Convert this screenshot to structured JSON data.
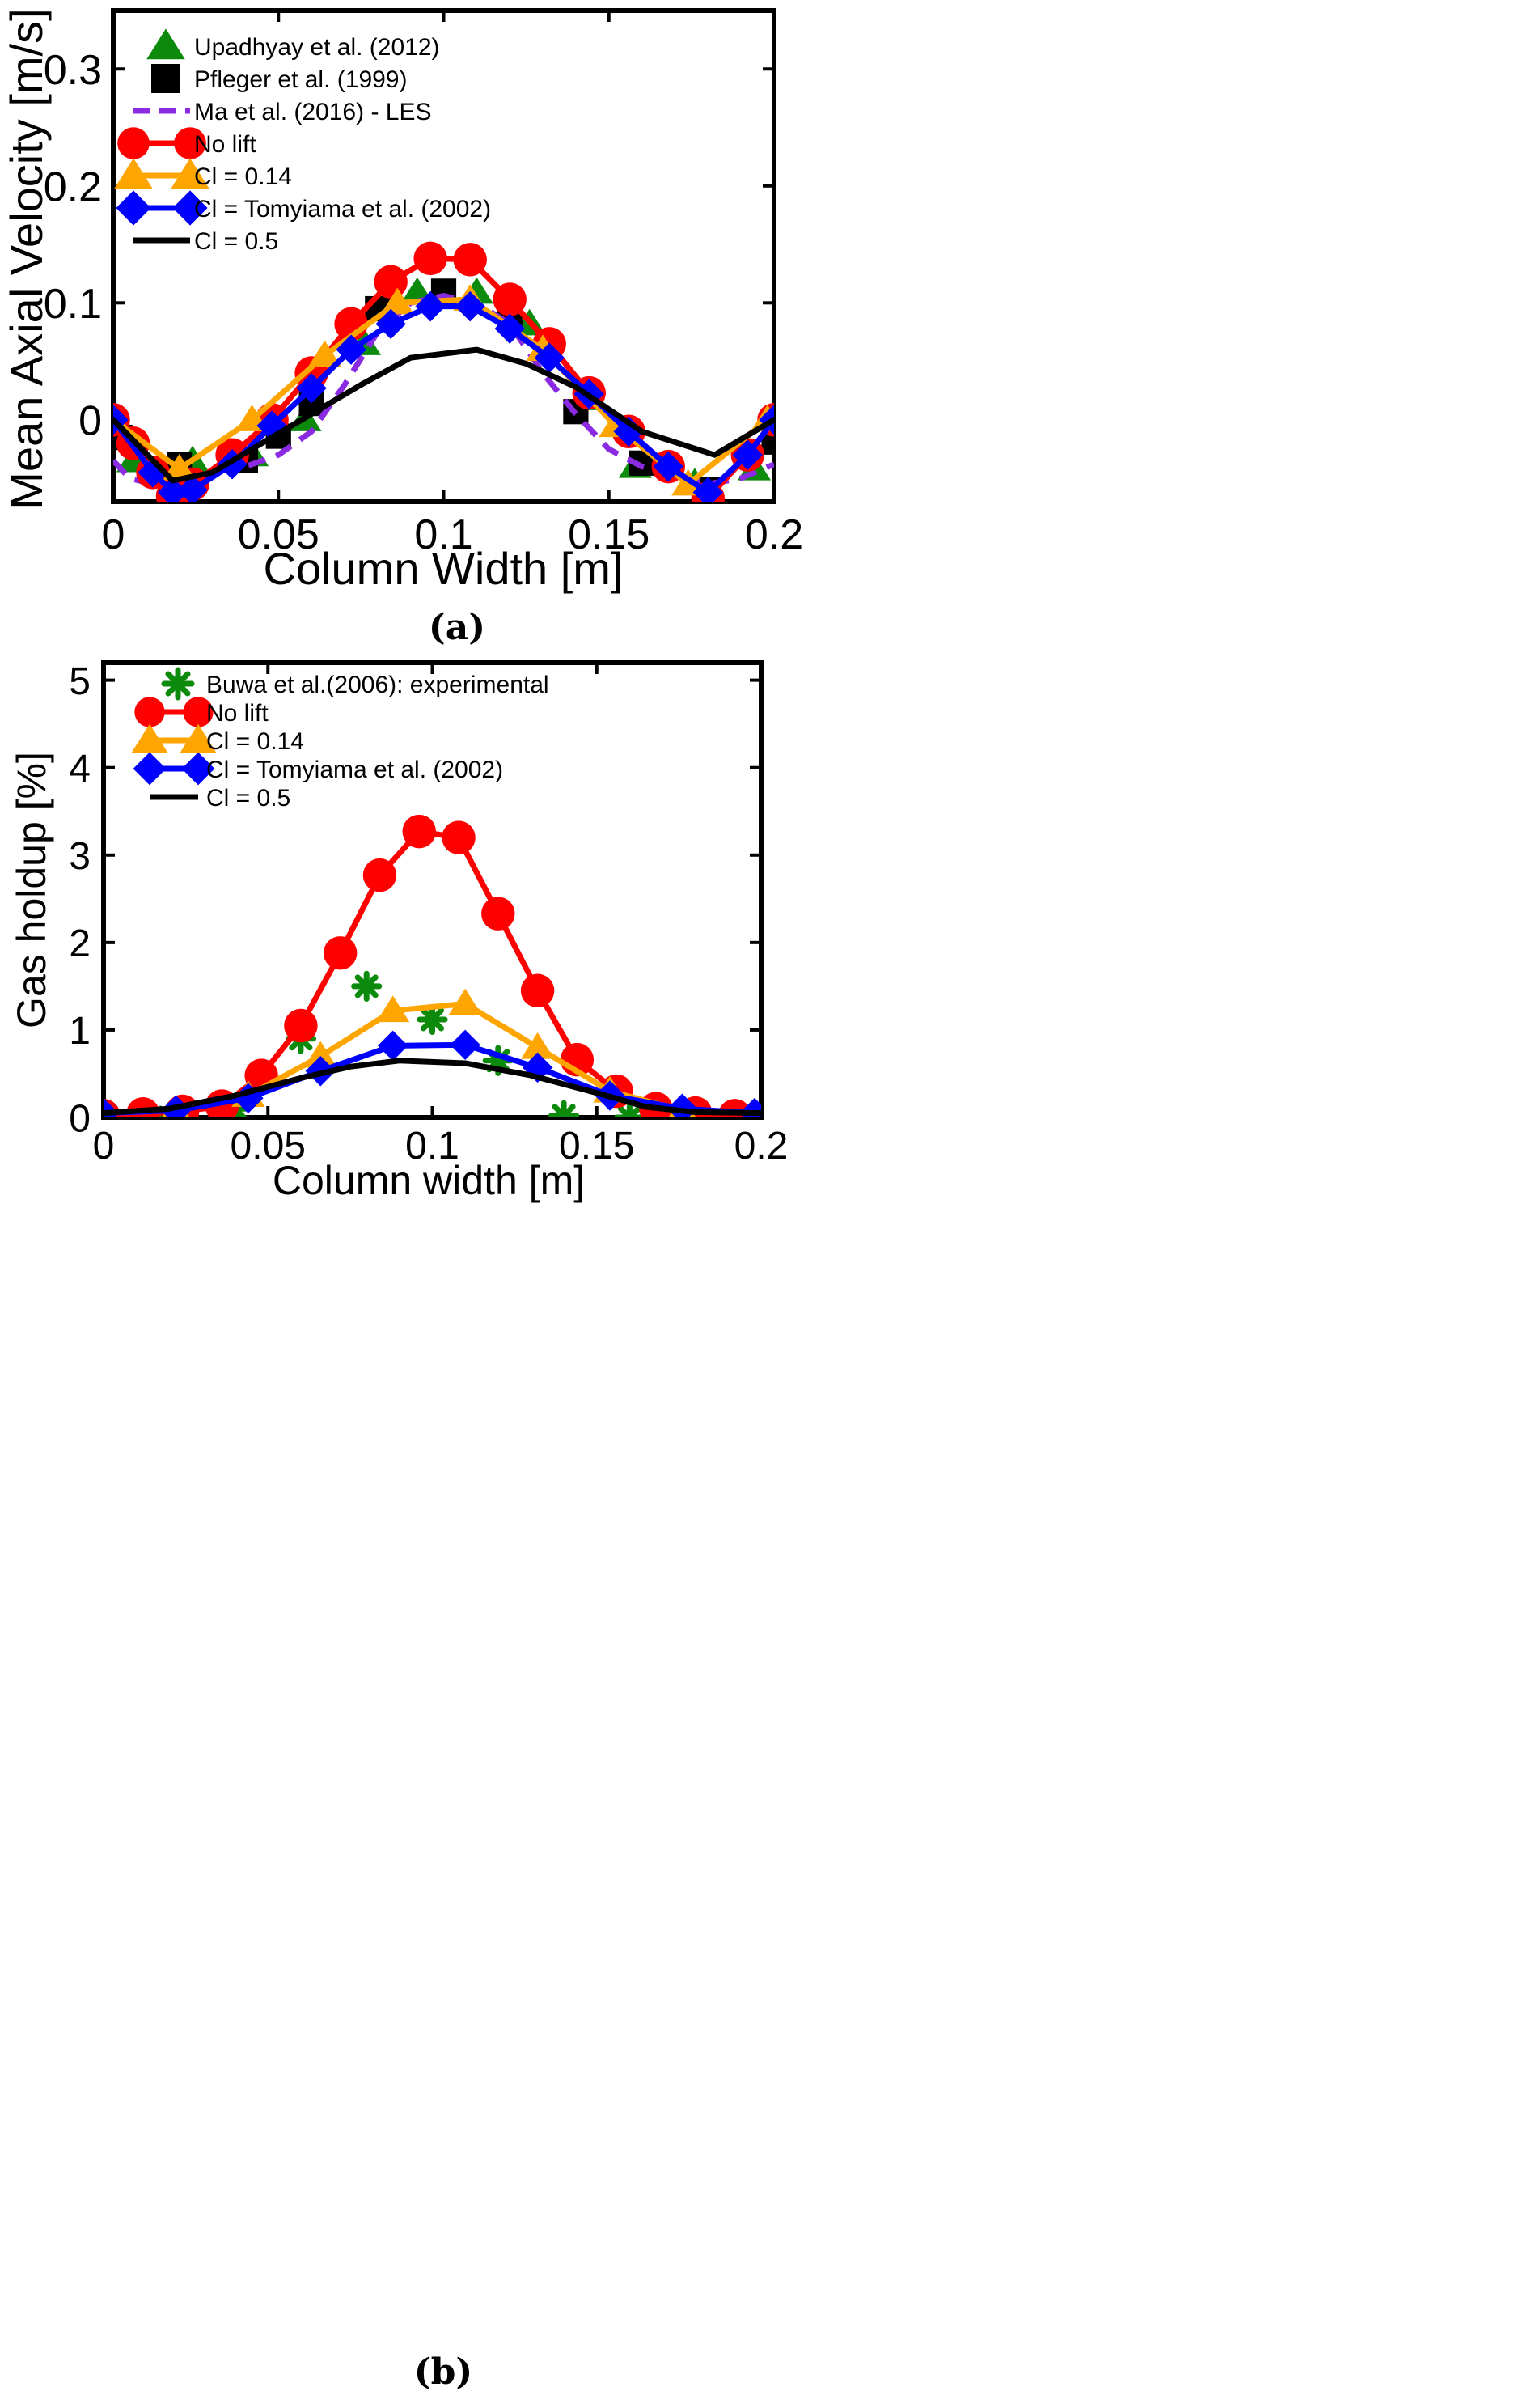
{
  "chart_data": [
    {
      "type": "line",
      "panel_label": "(a)",
      "xlabel": "Column Width [m]",
      "ylabel": "Mean Axial Velocity [m/s]",
      "xlim": [
        0,
        0.2
      ],
      "ylim": [
        -0.07,
        0.35
      ],
      "xticks": [
        0,
        0.05,
        0.1,
        0.15,
        0.2
      ],
      "xtick_labels": [
        "0",
        "0.05",
        "0.1",
        "0.15",
        "0.2"
      ],
      "yticks": [
        0,
        0.1,
        0.2,
        0.3
      ],
      "ytick_labels": [
        "0",
        "0.1",
        "0.2",
        "0.3"
      ],
      "legend_position": "top-left",
      "series": [
        {
          "name": "Upadhyay et al. (2012)",
          "style": "markers",
          "marker": "triangle",
          "color": "#0b8a0b",
          "x": [
            0,
            0.006,
            0.024,
            0.042,
            0.058,
            0.076,
            0.092,
            0.11,
            0.126,
            0.142,
            0.158,
            0.176,
            0.194
          ],
          "y": [
            0,
            -0.035,
            -0.035,
            -0.03,
            0,
            0.065,
            0.109,
            0.109,
            0.082,
            0.018,
            -0.04,
            -0.054,
            -0.042
          ]
        },
        {
          "name": "Pfleger et al. (1999)",
          "style": "markers",
          "marker": "square",
          "color": "#000000",
          "x": [
            0.002,
            0.02,
            0.04,
            0.05,
            0.06,
            0.08,
            0.1,
            0.12,
            0.14,
            0.16,
            0.18,
            0.2
          ],
          "y": [
            -0.015,
            -0.038,
            -0.035,
            -0.014,
            0.014,
            0.095,
            0.11,
            0.09,
            0.007,
            -0.037,
            -0.06,
            -0.019
          ]
        },
        {
          "name": "Ma et al. (2016) - LES",
          "style": "dashed",
          "color": "#8a2be2",
          "x": [
            0,
            0.005,
            0.012,
            0.02,
            0.03,
            0.04,
            0.05,
            0.06,
            0.07,
            0.08,
            0.09,
            0.1,
            0.11,
            0.12,
            0.13,
            0.14,
            0.15,
            0.16,
            0.17,
            0.18,
            0.19,
            0.2
          ],
          "y": [
            -0.035,
            -0.05,
            -0.055,
            -0.053,
            -0.045,
            -0.04,
            -0.03,
            -0.01,
            0.03,
            0.075,
            0.1,
            0.106,
            0.1,
            0.082,
            0.04,
            0.005,
            -0.025,
            -0.04,
            -0.048,
            -0.055,
            -0.05,
            -0.038
          ]
        },
        {
          "name": "No lift",
          "style": "line+markers",
          "marker": "circle",
          "color": "#ff0000",
          "x": [
            0,
            0.006,
            0.012,
            0.018,
            0.024,
            0.036,
            0.048,
            0.06,
            0.072,
            0.084,
            0.096,
            0.108,
            0.12,
            0.132,
            0.144,
            0.156,
            0.168,
            0.18,
            0.192,
            0.2
          ],
          "y": [
            0,
            -0.02,
            -0.045,
            -0.065,
            -0.055,
            -0.03,
            0,
            0.04,
            0.082,
            0.118,
            0.138,
            0.137,
            0.103,
            0.065,
            0.023,
            -0.01,
            -0.04,
            -0.067,
            -0.03,
            0
          ]
        },
        {
          "name": "Cl = 0.14",
          "style": "line+markers",
          "marker": "triangle",
          "color": "#ffa500",
          "x": [
            0,
            0.02,
            0.042,
            0.064,
            0.086,
            0.108,
            0.13,
            0.152,
            0.174,
            0.198
          ],
          "y": [
            0,
            -0.042,
            0,
            0.055,
            0.1,
            0.103,
            0.06,
            -0.005,
            -0.055,
            0
          ]
        },
        {
          "name": "Cl = Tomyiama et al. (2002)",
          "style": "line+markers",
          "marker": "diamond",
          "color": "#0000ff",
          "x": [
            0,
            0.012,
            0.018,
            0.024,
            0.036,
            0.048,
            0.06,
            0.072,
            0.084,
            0.096,
            0.108,
            0.12,
            0.132,
            0.144,
            0.156,
            0.168,
            0.18,
            0.192,
            0.2
          ],
          "y": [
            0,
            -0.045,
            -0.062,
            -0.06,
            -0.038,
            -0.005,
            0.027,
            0.06,
            0.082,
            0.097,
            0.097,
            0.078,
            0.053,
            0.022,
            -0.01,
            -0.04,
            -0.062,
            -0.03,
            0
          ]
        },
        {
          "name": "Cl = 0.5",
          "style": "line",
          "color": "#000000",
          "x": [
            0,
            0.018,
            0.03,
            0.045,
            0.06,
            0.075,
            0.09,
            0.11,
            0.125,
            0.14,
            0.16,
            0.182,
            0.2
          ],
          "y": [
            0,
            -0.052,
            -0.045,
            -0.02,
            0.005,
            0.03,
            0.053,
            0.06,
            0.048,
            0.028,
            -0.01,
            -0.03,
            0
          ]
        }
      ]
    },
    {
      "type": "line",
      "panel_label": "(b)",
      "xlabel": "Column width [m]",
      "ylabel": "Gas holdup [%]",
      "xlim": [
        0,
        0.2
      ],
      "ylim": [
        0,
        5.2
      ],
      "xticks": [
        0,
        0.05,
        0.1,
        0.15,
        0.2
      ],
      "xtick_labels": [
        "0",
        "0.05",
        "0.1",
        "0.15",
        "0.2"
      ],
      "yticks": [
        0,
        1,
        2,
        3,
        4,
        5
      ],
      "ytick_labels": [
        "0",
        "1",
        "2",
        "3",
        "4",
        "5"
      ],
      "legend_position": "top-left",
      "series": [
        {
          "name": "Buwa et al.(2006): experimental",
          "style": "markers",
          "marker": "asterisk",
          "color": "#0b8a0b",
          "x": [
            0,
            0.02,
            0.04,
            0.06,
            0.08,
            0.1,
            0.12,
            0.14,
            0.16,
            0.18
          ],
          "y": [
            0,
            0,
            0.1,
            0.9,
            1.5,
            1.12,
            0.65,
            0.02,
            0,
            0
          ]
        },
        {
          "name": "No lift",
          "style": "line+markers",
          "marker": "circle",
          "color": "#ff0000",
          "x": [
            0,
            0.012,
            0.024,
            0.036,
            0.048,
            0.06,
            0.072,
            0.084,
            0.096,
            0.108,
            0.12,
            0.132,
            0.144,
            0.156,
            0.168,
            0.18,
            0.192
          ],
          "y": [
            0.02,
            0.04,
            0.07,
            0.13,
            0.48,
            1.05,
            1.88,
            2.77,
            3.27,
            3.2,
            2.33,
            1.45,
            0.66,
            0.3,
            0.1,
            0.05,
            0.02
          ]
        },
        {
          "name": "Cl = 0.14",
          "style": "line+markers",
          "marker": "triangle",
          "color": "#ffa500",
          "x": [
            0,
            0.022,
            0.044,
            0.066,
            0.088,
            0.11,
            0.132,
            0.154,
            0.176,
            0.198
          ],
          "y": [
            0.05,
            0.08,
            0.25,
            0.7,
            1.22,
            1.3,
            0.8,
            0.3,
            0.08,
            0.05
          ]
        },
        {
          "name": "Cl = Tomyiama et al. (2002)",
          "style": "line+markers",
          "marker": "diamond",
          "color": "#0000ff",
          "x": [
            0,
            0.022,
            0.044,
            0.066,
            0.088,
            0.11,
            0.132,
            0.154,
            0.176,
            0.198
          ],
          "y": [
            0.05,
            0.08,
            0.22,
            0.53,
            0.82,
            0.83,
            0.57,
            0.25,
            0.1,
            0.05
          ]
        },
        {
          "name": "Cl = 0.5",
          "style": "line",
          "color": "#000000",
          "x": [
            0,
            0.02,
            0.04,
            0.06,
            0.075,
            0.09,
            0.11,
            0.13,
            0.15,
            0.165,
            0.18,
            0.2
          ],
          "y": [
            0.05,
            0.1,
            0.25,
            0.45,
            0.58,
            0.65,
            0.62,
            0.48,
            0.28,
            0.12,
            0.06,
            0.05
          ]
        }
      ]
    }
  ]
}
